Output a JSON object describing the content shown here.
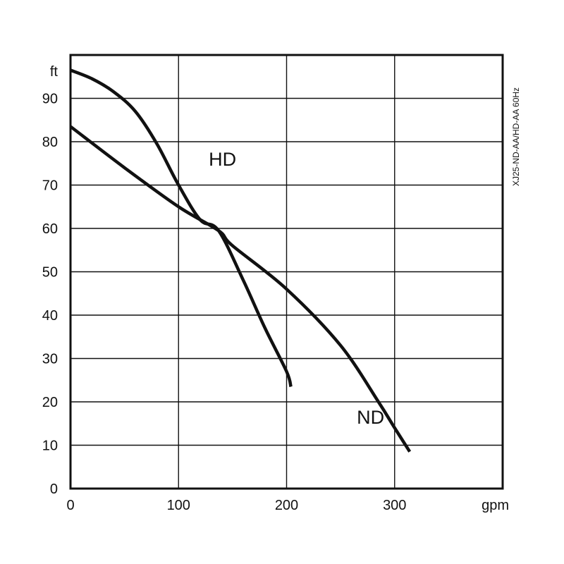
{
  "chart_data": {
    "type": "line",
    "title": "",
    "xlabel": "gpm",
    "ylabel": "ft",
    "side_note": "XJ25-ND-AA/HD-AA 60Hz",
    "xlim": [
      0,
      400
    ],
    "ylim": [
      0,
      100
    ],
    "xticks": [
      0,
      100,
      200,
      300
    ],
    "xtick_labels": [
      "0",
      "100",
      "200",
      "300"
    ],
    "yticks": [
      0,
      10,
      20,
      30,
      40,
      50,
      60,
      70,
      80,
      90
    ],
    "ytick_labels": [
      "0",
      "10",
      "20",
      "30",
      "40",
      "50",
      "60",
      "70",
      "80",
      "90"
    ],
    "grid": true,
    "series": [
      {
        "name": "HD",
        "color": "#111111",
        "x": [
          0,
          20,
          40,
          60,
          80,
          100,
          120,
          137,
          160,
          180,
          200,
          204
        ],
        "y": [
          96.5,
          94.5,
          91.5,
          87,
          79.5,
          70,
          62,
          59.5,
          48,
          37,
          27,
          23.5
        ]
      },
      {
        "name": "ND",
        "color": "#111111",
        "x": [
          0,
          50,
          100,
          137,
          150,
          200,
          250,
          285,
          300,
          314
        ],
        "y": [
          83.5,
          74,
          65,
          59.5,
          56,
          46,
          33,
          20,
          14,
          8.5
        ]
      }
    ],
    "annotations": [
      {
        "text": "HD",
        "x": 128,
        "y": 74.5
      },
      {
        "text": "ND",
        "x": 265,
        "y": 15
      }
    ]
  }
}
